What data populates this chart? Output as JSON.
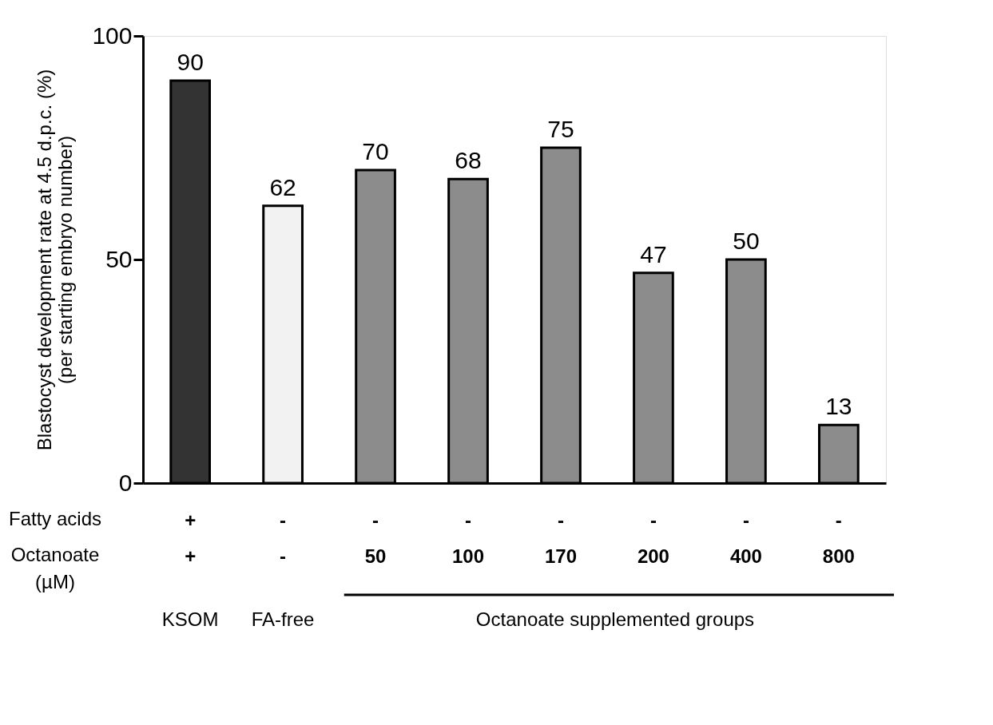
{
  "chart_data": {
    "type": "bar",
    "ylabel": "Blastocyst development rate at 4.5 d.p.c. (%)\n(per starting embryo number)",
    "categories": [
      "+\n+",
      "-\n-",
      "-\n50",
      "-\n100",
      "-\n170",
      "-\n200",
      "-\n400",
      "-\n800"
    ],
    "values": [
      90,
      62,
      70,
      68,
      75,
      47,
      50,
      13
    ],
    "colors": [
      "#333333",
      "#f2f2f2",
      "#8c8c8c",
      "#8c8c8c",
      "#8c8c8c",
      "#8c8c8c",
      "#8c8c8c",
      "#8c8c8c"
    ],
    "ylim": [
      0,
      100
    ],
    "yticks": [
      0,
      50,
      100
    ],
    "grid": false,
    "data_labels": true,
    "annotations": [
      "Fatty acids",
      "Octanoate\n(µM)",
      "KSOM",
      "FA-free",
      "Octanoate supplemented groups"
    ]
  }
}
